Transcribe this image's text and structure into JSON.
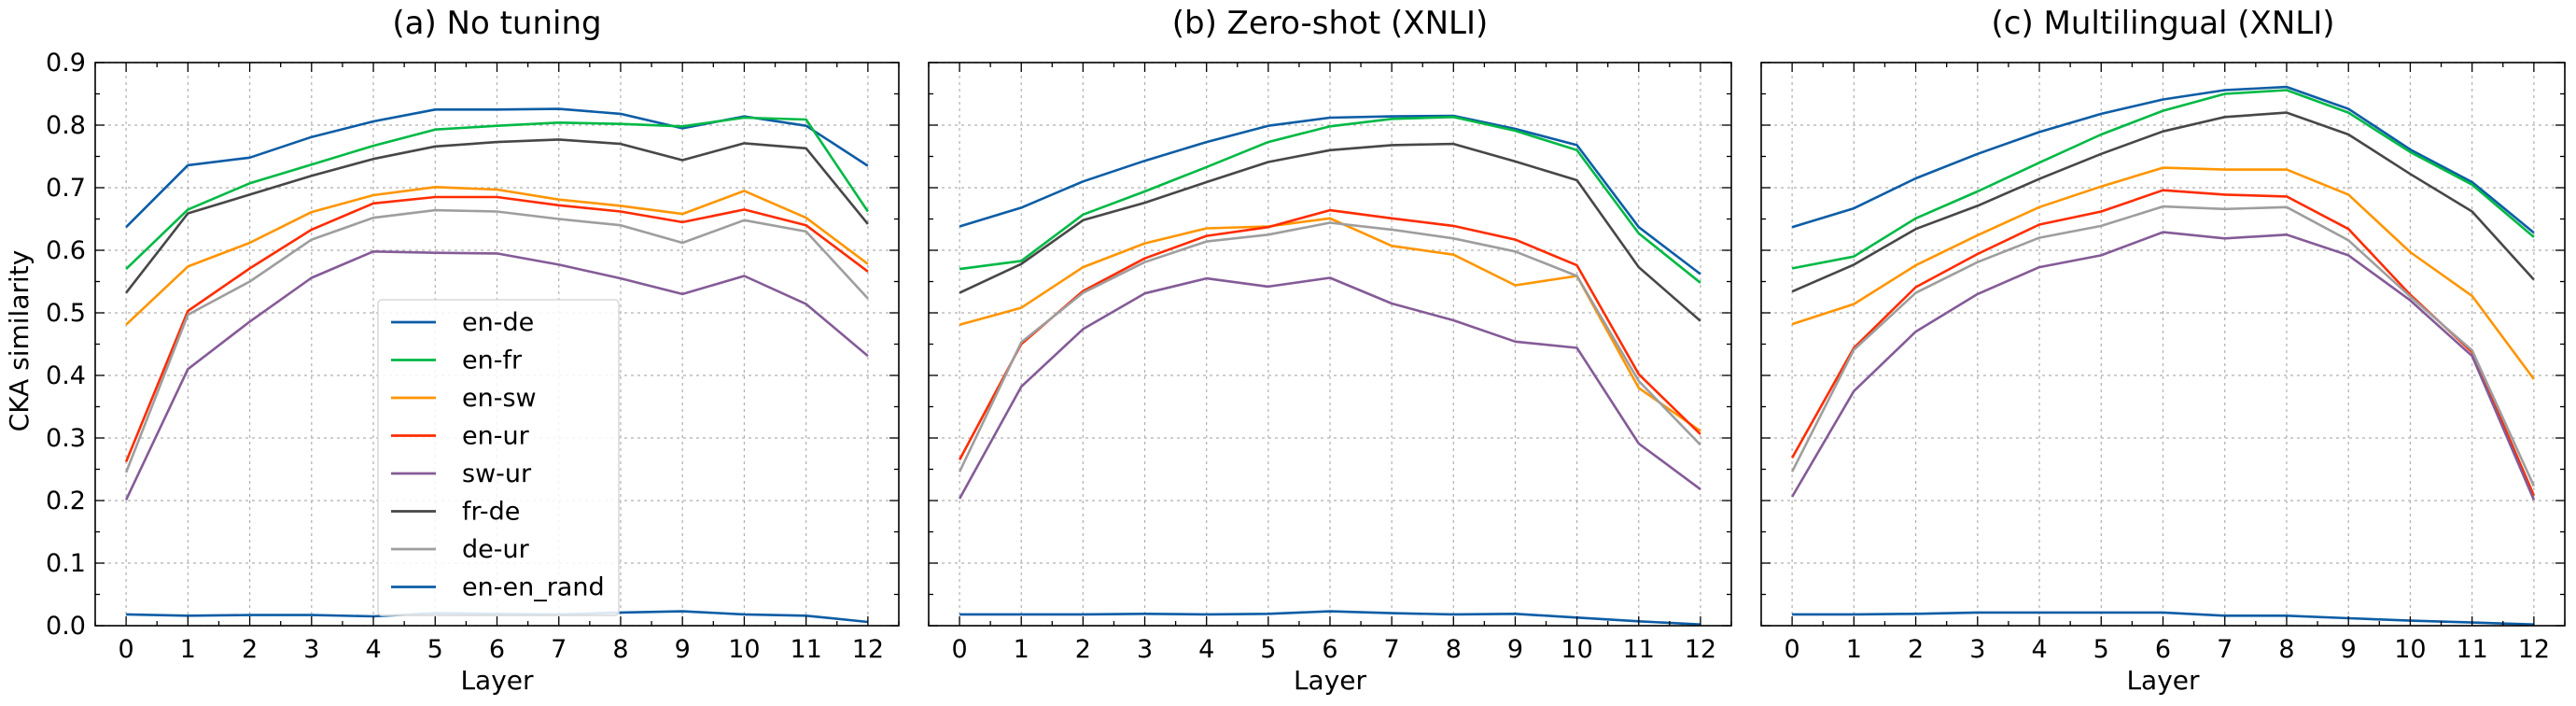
{
  "figure": {
    "ylabel": "CKA similarity"
  },
  "legend": {
    "entries": [
      {
        "name": "en-de",
        "color": "#0C5DA5"
      },
      {
        "name": "en-fr",
        "color": "#00B945"
      },
      {
        "name": "en-sw",
        "color": "#FF9500"
      },
      {
        "name": "en-ur",
        "color": "#FF2C00"
      },
      {
        "name": "sw-ur",
        "color": "#845B97"
      },
      {
        "name": "fr-de",
        "color": "#474747"
      },
      {
        "name": "de-ur",
        "color": "#9E9E9E"
      },
      {
        "name": "en-en_rand",
        "color": "#0C5DA5"
      }
    ],
    "placement": "center-left (first panel)"
  },
  "chart_data": [
    {
      "type": "line",
      "title": "(a) No tuning",
      "xlabel": "Layer",
      "ylabel": "CKA similarity",
      "x": [
        0,
        1,
        2,
        3,
        4,
        5,
        6,
        7,
        8,
        9,
        10,
        11,
        12
      ],
      "ylim": [
        0,
        0.9
      ],
      "grid": true,
      "series": [
        {
          "name": "en-de",
          "color": "#0C5DA5",
          "values": [
            0.637,
            0.736,
            0.748,
            0.781,
            0.806,
            0.825,
            0.825,
            0.826,
            0.818,
            0.795,
            0.814,
            0.799,
            0.735
          ]
        },
        {
          "name": "en-fr",
          "color": "#00B945",
          "values": [
            0.57,
            0.665,
            0.707,
            0.737,
            0.767,
            0.793,
            0.799,
            0.804,
            0.802,
            0.798,
            0.812,
            0.809,
            0.662
          ]
        },
        {
          "name": "en-sw",
          "color": "#FF9500",
          "values": [
            0.481,
            0.574,
            0.612,
            0.661,
            0.688,
            0.701,
            0.697,
            0.681,
            0.671,
            0.658,
            0.695,
            0.652,
            0.578
          ]
        },
        {
          "name": "en-ur",
          "color": "#FF2C00",
          "values": [
            0.262,
            0.503,
            0.571,
            0.633,
            0.675,
            0.685,
            0.685,
            0.672,
            0.662,
            0.645,
            0.665,
            0.64,
            0.566
          ]
        },
        {
          "name": "sw-ur",
          "color": "#845B97",
          "values": [
            0.201,
            0.41,
            0.486,
            0.556,
            0.598,
            0.596,
            0.595,
            0.577,
            0.555,
            0.53,
            0.559,
            0.514,
            0.431
          ]
        },
        {
          "name": "fr-de",
          "color": "#474747",
          "values": [
            0.532,
            0.659,
            0.689,
            0.719,
            0.746,
            0.766,
            0.773,
            0.777,
            0.77,
            0.744,
            0.771,
            0.763,
            0.642
          ]
        },
        {
          "name": "de-ur",
          "color": "#9E9E9E",
          "values": [
            0.245,
            0.497,
            0.55,
            0.617,
            0.652,
            0.664,
            0.662,
            0.65,
            0.64,
            0.612,
            0.648,
            0.63,
            0.523
          ]
        },
        {
          "name": "en-en_rand",
          "color": "#0C5DA5",
          "values": [
            0.018,
            0.016,
            0.017,
            0.017,
            0.015,
            0.02,
            0.019,
            0.018,
            0.021,
            0.023,
            0.018,
            0.016,
            0.006
          ]
        }
      ]
    },
    {
      "type": "line",
      "title": "(b) Zero-shot (XNLI)",
      "xlabel": "Layer",
      "x": [
        0,
        1,
        2,
        3,
        4,
        5,
        6,
        7,
        8,
        9,
        10,
        11,
        12
      ],
      "ylim": [
        0,
        0.9
      ],
      "grid": true,
      "series": [
        {
          "name": "en-de",
          "color": "#0C5DA5",
          "values": [
            0.638,
            0.668,
            0.71,
            0.743,
            0.773,
            0.799,
            0.812,
            0.814,
            0.815,
            0.794,
            0.768,
            0.637,
            0.562
          ]
        },
        {
          "name": "en-fr",
          "color": "#00B945",
          "values": [
            0.57,
            0.583,
            0.657,
            0.694,
            0.733,
            0.773,
            0.798,
            0.81,
            0.813,
            0.791,
            0.76,
            0.627,
            0.548
          ]
        },
        {
          "name": "en-sw",
          "color": "#FF9500",
          "values": [
            0.481,
            0.508,
            0.573,
            0.611,
            0.635,
            0.638,
            0.651,
            0.607,
            0.593,
            0.544,
            0.559,
            0.38,
            0.311
          ]
        },
        {
          "name": "en-ur",
          "color": "#FF2C00",
          "values": [
            0.265,
            0.45,
            0.535,
            0.587,
            0.623,
            0.637,
            0.664,
            0.651,
            0.639,
            0.617,
            0.576,
            0.402,
            0.306
          ]
        },
        {
          "name": "sw-ur",
          "color": "#845B97",
          "values": [
            0.203,
            0.382,
            0.474,
            0.531,
            0.555,
            0.542,
            0.556,
            0.515,
            0.488,
            0.454,
            0.444,
            0.291,
            0.218
          ]
        },
        {
          "name": "fr-de",
          "color": "#474747",
          "values": [
            0.532,
            0.578,
            0.648,
            0.676,
            0.709,
            0.741,
            0.76,
            0.768,
            0.77,
            0.742,
            0.712,
            0.573,
            0.487
          ]
        },
        {
          "name": "de-ur",
          "color": "#9E9E9E",
          "values": [
            0.246,
            0.453,
            0.532,
            0.581,
            0.614,
            0.625,
            0.644,
            0.633,
            0.619,
            0.598,
            0.559,
            0.391,
            0.289
          ]
        },
        {
          "name": "en-en_rand",
          "color": "#0C5DA5",
          "values": [
            0.018,
            0.018,
            0.018,
            0.019,
            0.018,
            0.019,
            0.023,
            0.02,
            0.018,
            0.019,
            0.013,
            0.007,
            0.002
          ]
        }
      ]
    },
    {
      "type": "line",
      "title": "(c) Multilingual (XNLI)",
      "xlabel": "Layer",
      "x": [
        0,
        1,
        2,
        3,
        4,
        5,
        6,
        7,
        8,
        9,
        10,
        11,
        12
      ],
      "ylim": [
        0,
        0.9
      ],
      "grid": true,
      "series": [
        {
          "name": "en-de",
          "color": "#0C5DA5",
          "values": [
            0.637,
            0.667,
            0.715,
            0.754,
            0.789,
            0.818,
            0.841,
            0.856,
            0.861,
            0.826,
            0.761,
            0.709,
            0.628
          ]
        },
        {
          "name": "en-fr",
          "color": "#00B945",
          "values": [
            0.571,
            0.59,
            0.651,
            0.694,
            0.74,
            0.785,
            0.823,
            0.85,
            0.856,
            0.82,
            0.757,
            0.705,
            0.621
          ]
        },
        {
          "name": "en-sw",
          "color": "#FF9500",
          "values": [
            0.482,
            0.514,
            0.576,
            0.624,
            0.669,
            0.702,
            0.732,
            0.729,
            0.729,
            0.689,
            0.597,
            0.527,
            0.394
          ]
        },
        {
          "name": "en-ur",
          "color": "#FF2C00",
          "values": [
            0.268,
            0.444,
            0.541,
            0.594,
            0.641,
            0.662,
            0.696,
            0.689,
            0.686,
            0.634,
            0.529,
            0.437,
            0.208
          ]
        },
        {
          "name": "sw-ur",
          "color": "#845B97",
          "values": [
            0.206,
            0.375,
            0.47,
            0.53,
            0.573,
            0.592,
            0.629,
            0.619,
            0.625,
            0.592,
            0.52,
            0.431,
            0.201
          ]
        },
        {
          "name": "fr-de",
          "color": "#474747",
          "values": [
            0.534,
            0.577,
            0.634,
            0.671,
            0.714,
            0.754,
            0.79,
            0.813,
            0.82,
            0.785,
            0.722,
            0.662,
            0.553
          ]
        },
        {
          "name": "de-ur",
          "color": "#9E9E9E",
          "values": [
            0.246,
            0.441,
            0.532,
            0.581,
            0.62,
            0.639,
            0.67,
            0.666,
            0.669,
            0.616,
            0.526,
            0.44,
            0.223
          ]
        },
        {
          "name": "en-en_rand",
          "color": "#0C5DA5",
          "values": [
            0.018,
            0.018,
            0.019,
            0.021,
            0.021,
            0.021,
            0.021,
            0.016,
            0.016,
            0.012,
            0.008,
            0.005,
            0.002
          ]
        }
      ]
    }
  ]
}
